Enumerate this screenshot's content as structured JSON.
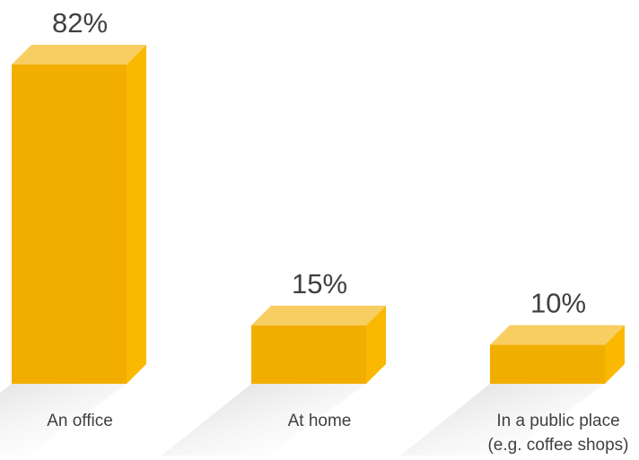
{
  "chart_data": {
    "type": "bar",
    "style": "3d",
    "categories": [
      [
        "An office"
      ],
      [
        "At home"
      ],
      [
        "In a public place",
        "(e.g. coffee shops)"
      ]
    ],
    "values": [
      82,
      15,
      10
    ],
    "value_labels": [
      "82%",
      "15%",
      "10%"
    ],
    "unit": "%",
    "title": "",
    "xlabel": "",
    "ylabel": "",
    "ylim": [
      0,
      82
    ],
    "grid": false,
    "legend": "none",
    "colors": {
      "front": "#F2AE00",
      "top": "#F8CE62",
      "side": "#FBB800",
      "shadow": "#D4D4D4",
      "text": "#404040"
    }
  }
}
